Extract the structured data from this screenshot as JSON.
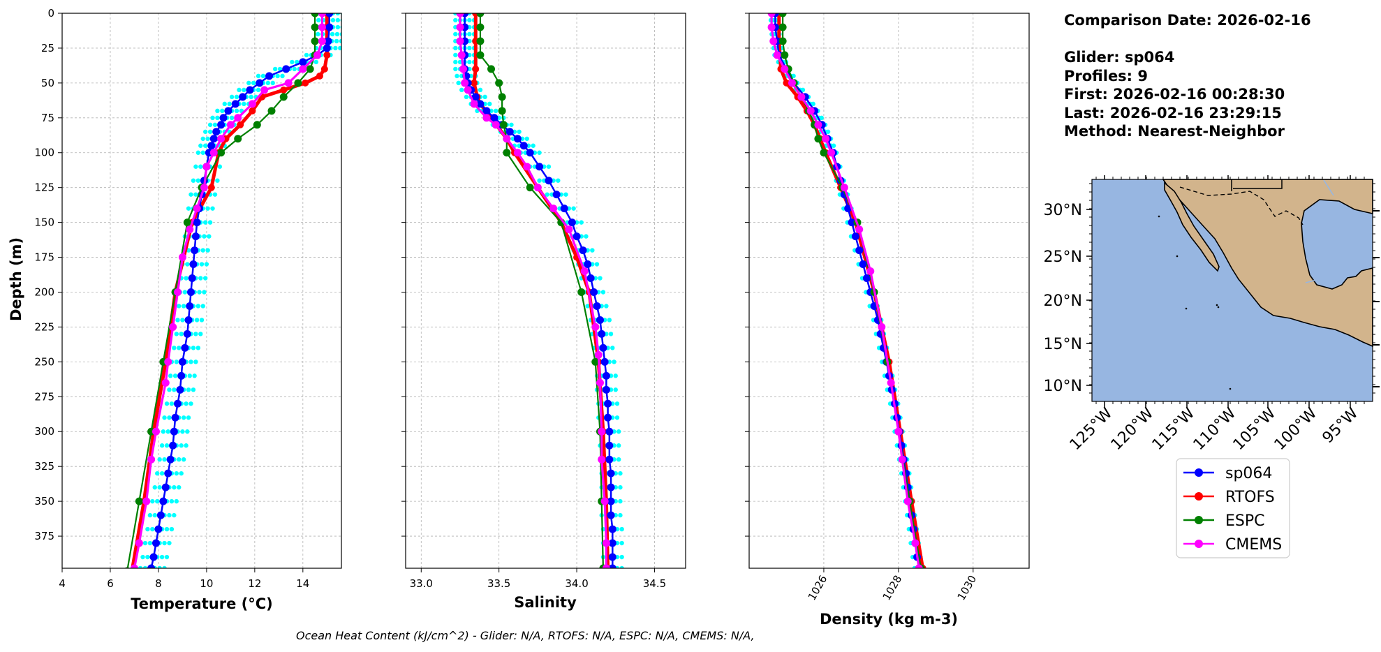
{
  "chart_data": [
    {
      "type": "line",
      "xlabel": "Temperature (°C)",
      "ylabel": "Depth (m)",
      "xlim": [
        4,
        15.6
      ],
      "ylim": [
        398,
        0
      ],
      "xticks": [
        4,
        6,
        8,
        10,
        12,
        14
      ],
      "yticks": [
        0,
        25,
        50,
        75,
        100,
        125,
        150,
        175,
        200,
        225,
        250,
        275,
        300,
        325,
        350,
        375
      ],
      "grid": true,
      "profiles_scatter": {
        "name": "glider profiles",
        "offsets": [
          -0.45,
          -0.25,
          -0.05,
          0.15,
          0.35,
          0.55
        ],
        "depths": [
          0,
          5,
          10,
          15,
          20,
          25,
          30,
          35,
          40,
          45,
          50,
          55,
          60,
          65,
          70,
          75,
          80,
          85,
          90,
          95,
          100,
          110,
          120,
          130,
          140,
          150,
          160,
          170,
          180,
          190,
          200,
          210,
          220,
          230,
          240,
          250,
          260,
          270,
          280,
          290,
          300,
          310,
          320,
          330,
          340,
          350,
          360,
          370,
          380,
          390,
          398
        ]
      },
      "series": [
        {
          "name": "sp064",
          "depth": [
            0,
            10,
            20,
            25,
            30,
            35,
            40,
            45,
            50,
            55,
            60,
            65,
            70,
            75,
            80,
            85,
            90,
            95,
            100,
            110,
            120,
            130,
            140,
            150,
            160,
            170,
            180,
            190,
            200,
            210,
            220,
            230,
            240,
            250,
            260,
            270,
            280,
            290,
            300,
            310,
            320,
            330,
            340,
            350,
            360,
            370,
            380,
            390,
            398
          ],
          "values": [
            15.1,
            15.1,
            15.05,
            15.0,
            14.6,
            14.0,
            13.3,
            12.6,
            12.2,
            11.8,
            11.5,
            11.2,
            10.9,
            10.7,
            10.6,
            10.4,
            10.3,
            10.2,
            10.1,
            10.0,
            9.9,
            9.8,
            9.7,
            9.6,
            9.55,
            9.5,
            9.45,
            9.4,
            9.35,
            9.3,
            9.25,
            9.2,
            9.1,
            9.0,
            8.95,
            8.9,
            8.8,
            8.7,
            8.65,
            8.6,
            8.5,
            8.4,
            8.3,
            8.2,
            8.1,
            8.0,
            7.9,
            7.8,
            7.7
          ]
        },
        {
          "name": "RTOFS",
          "depth": [
            0,
            10,
            20,
            30,
            40,
            45,
            50,
            55,
            60,
            70,
            80,
            90,
            100,
            125,
            150,
            200,
            250,
            300,
            350,
            400
          ],
          "values": [
            15.0,
            15.0,
            15.0,
            15.0,
            14.9,
            14.7,
            14.1,
            13.2,
            12.3,
            11.9,
            11.4,
            10.8,
            10.5,
            10.2,
            9.4,
            8.7,
            8.3,
            7.8,
            7.4,
            6.9
          ]
        },
        {
          "name": "ESPC",
          "depth": [
            0,
            10,
            20,
            30,
            40,
            50,
            60,
            70,
            80,
            90,
            100,
            125,
            150,
            200,
            250,
            300,
            350,
            400
          ],
          "values": [
            14.5,
            14.5,
            14.5,
            14.5,
            14.3,
            13.8,
            13.2,
            12.7,
            12.1,
            11.3,
            10.6,
            9.8,
            9.2,
            8.7,
            8.2,
            7.7,
            7.2,
            6.7
          ]
        },
        {
          "name": "CMEMS",
          "depth": [
            0,
            10,
            20,
            30,
            40,
            50,
            55,
            65,
            75,
            80,
            90,
            100,
            110,
            125,
            140,
            155,
            175,
            200,
            225,
            250,
            265,
            300,
            320,
            350,
            380,
            398
          ],
          "values": [
            14.8,
            14.8,
            14.8,
            14.6,
            14.0,
            13.4,
            12.4,
            11.9,
            11.3,
            11.0,
            10.6,
            10.3,
            10.0,
            9.9,
            9.6,
            9.3,
            9.0,
            8.8,
            8.6,
            8.4,
            8.3,
            7.9,
            7.7,
            7.5,
            7.2,
            7.0
          ]
        }
      ]
    },
    {
      "type": "line",
      "xlabel": "Salinity",
      "xlim": [
        32.9,
        34.7
      ],
      "ylim": [
        398,
        0
      ],
      "xticks": [
        33.0,
        33.5,
        34.0,
        34.5
      ],
      "grid": true,
      "profiles_scatter": {
        "name": "glider profiles",
        "offsets": [
          -0.06,
          -0.03,
          0.0,
          0.03,
          0.06
        ],
        "depths": [
          0,
          5,
          10,
          15,
          20,
          25,
          30,
          35,
          40,
          45,
          50,
          55,
          60,
          65,
          70,
          75,
          80,
          85,
          90,
          95,
          100,
          110,
          120,
          130,
          140,
          150,
          160,
          170,
          180,
          190,
          200,
          210,
          220,
          230,
          240,
          250,
          260,
          270,
          280,
          290,
          300,
          310,
          320,
          330,
          340,
          350,
          360,
          370,
          380,
          390,
          398
        ]
      },
      "series": [
        {
          "name": "sp064",
          "depth": [
            0,
            10,
            20,
            30,
            40,
            45,
            50,
            55,
            60,
            65,
            70,
            75,
            80,
            85,
            90,
            95,
            100,
            110,
            120,
            130,
            140,
            150,
            160,
            170,
            180,
            190,
            200,
            210,
            220,
            230,
            240,
            250,
            260,
            270,
            280,
            290,
            300,
            310,
            320,
            330,
            340,
            350,
            360,
            370,
            380,
            390,
            398
          ],
          "values": [
            33.28,
            33.28,
            33.28,
            33.28,
            33.28,
            33.29,
            33.3,
            33.32,
            33.35,
            33.38,
            33.42,
            33.47,
            33.52,
            33.57,
            33.62,
            33.66,
            33.7,
            33.76,
            33.82,
            33.87,
            33.92,
            33.97,
            34.0,
            34.04,
            34.07,
            34.09,
            34.11,
            34.13,
            34.15,
            34.16,
            34.17,
            34.18,
            34.19,
            34.19,
            34.2,
            34.2,
            34.21,
            34.21,
            34.21,
            34.22,
            34.22,
            34.22,
            34.22,
            34.23,
            34.23,
            34.23,
            34.23
          ]
        },
        {
          "name": "RTOFS",
          "depth": [
            0,
            20,
            40,
            50,
            60,
            65,
            75,
            90,
            100,
            125,
            150,
            175,
            200,
            250,
            300,
            350,
            398
          ],
          "values": [
            33.35,
            33.35,
            33.35,
            33.34,
            33.36,
            33.38,
            33.45,
            33.55,
            33.6,
            33.75,
            33.9,
            34.0,
            34.08,
            34.14,
            34.17,
            34.19,
            34.2
          ]
        },
        {
          "name": "ESPC",
          "depth": [
            0,
            10,
            20,
            30,
            40,
            50,
            60,
            70,
            80,
            90,
            100,
            125,
            150,
            200,
            250,
            300,
            350,
            398
          ],
          "values": [
            33.38,
            33.38,
            33.38,
            33.38,
            33.45,
            33.5,
            33.52,
            33.52,
            33.53,
            33.55,
            33.55,
            33.7,
            33.9,
            34.03,
            34.12,
            34.15,
            34.16,
            34.17
          ]
        },
        {
          "name": "CMEMS",
          "depth": [
            0,
            10,
            20,
            30,
            40,
            50,
            55,
            65,
            75,
            80,
            90,
            100,
            110,
            125,
            140,
            155,
            185,
            225,
            245,
            265,
            300,
            320,
            350,
            380,
            398
          ],
          "values": [
            33.25,
            33.25,
            33.25,
            33.26,
            33.27,
            33.28,
            33.3,
            33.34,
            33.42,
            33.48,
            33.55,
            33.62,
            33.68,
            33.75,
            33.85,
            33.95,
            34.05,
            34.12,
            34.14,
            34.15,
            34.16,
            34.16,
            34.18,
            34.19,
            34.19
          ]
        }
      ]
    },
    {
      "type": "line",
      "xlabel": "Density (kg m-3)",
      "xlim": [
        1024,
        1031.5
      ],
      "ylim": [
        398,
        0
      ],
      "xticks": [
        1026,
        1028,
        1030
      ],
      "grid": true,
      "profiles_scatter": {
        "name": "glider profiles",
        "offsets": [
          -0.12,
          -0.05,
          0.02,
          0.09
        ],
        "depths": [
          0,
          5,
          10,
          15,
          20,
          25,
          30,
          35,
          40,
          45,
          50,
          55,
          60,
          65,
          70,
          75,
          80,
          85,
          90,
          95,
          100,
          110,
          120,
          130,
          140,
          150,
          160,
          170,
          180,
          190,
          200,
          210,
          220,
          230,
          240,
          250,
          260,
          270,
          280,
          290,
          300,
          310,
          320,
          330,
          340,
          350,
          360,
          370,
          380,
          390,
          398
        ]
      },
      "series": [
        {
          "name": "sp064",
          "depth": [
            0,
            10,
            20,
            30,
            40,
            50,
            60,
            70,
            80,
            90,
            100,
            110,
            120,
            130,
            140,
            150,
            160,
            170,
            180,
            190,
            200,
            210,
            220,
            230,
            240,
            250,
            260,
            270,
            280,
            290,
            300,
            310,
            320,
            330,
            340,
            350,
            360,
            370,
            380,
            390,
            398
          ],
          "values": [
            1024.7,
            1024.7,
            1024.75,
            1024.8,
            1025.0,
            1025.2,
            1025.5,
            1025.75,
            1025.95,
            1026.1,
            1026.25,
            1026.35,
            1026.45,
            1026.55,
            1026.65,
            1026.75,
            1026.85,
            1026.95,
            1027.05,
            1027.15,
            1027.25,
            1027.35,
            1027.45,
            1027.52,
            1027.6,
            1027.68,
            1027.75,
            1027.82,
            1027.9,
            1027.96,
            1028.02,
            1028.08,
            1028.14,
            1028.2,
            1028.25,
            1028.3,
            1028.35,
            1028.4,
            1028.45,
            1028.5,
            1028.55
          ]
        },
        {
          "name": "RTOFS",
          "depth": [
            0,
            20,
            40,
            50,
            60,
            70,
            80,
            90,
            100,
            125,
            150,
            200,
            250,
            300,
            350,
            398
          ],
          "values": [
            1024.8,
            1024.8,
            1024.85,
            1025.0,
            1025.3,
            1025.55,
            1025.75,
            1025.9,
            1026.05,
            1026.45,
            1026.85,
            1027.35,
            1027.75,
            1028.05,
            1028.35,
            1028.65
          ]
        },
        {
          "name": "ESPC",
          "depth": [
            0,
            10,
            20,
            30,
            40,
            50,
            60,
            70,
            80,
            90,
            100,
            125,
            150,
            200,
            250,
            300,
            350,
            398
          ],
          "values": [
            1024.9,
            1024.9,
            1024.9,
            1024.95,
            1025.05,
            1025.2,
            1025.4,
            1025.6,
            1025.75,
            1025.85,
            1026.0,
            1026.5,
            1026.9,
            1027.35,
            1027.7,
            1028.0,
            1028.3,
            1028.6
          ]
        },
        {
          "name": "CMEMS",
          "depth": [
            0,
            10,
            20,
            30,
            40,
            50,
            60,
            70,
            80,
            90,
            100,
            125,
            155,
            185,
            225,
            265,
            300,
            320,
            350,
            380,
            398
          ],
          "values": [
            1024.6,
            1024.6,
            1024.65,
            1024.75,
            1024.95,
            1025.15,
            1025.4,
            1025.65,
            1025.85,
            1026.05,
            1026.2,
            1026.55,
            1026.95,
            1027.25,
            1027.55,
            1027.8,
            1028.0,
            1028.1,
            1028.25,
            1028.45,
            1028.55
          ]
        }
      ]
    }
  ],
  "colors": {
    "sp064": "#0000ff",
    "RTOFS": "#ff0000",
    "ESPC": "#008000",
    "CMEMS": "#ff00ff",
    "profiles": "#00ffff",
    "ocean": "#97b6e1",
    "land": "#d2b48c"
  },
  "info": {
    "comparison_date": "Comparison Date: 2026-02-16",
    "glider": "Glider: sp064",
    "profiles": "Profiles: 9",
    "first": "First: 2026-02-16 00:28:30",
    "last": "Last: 2026-02-16 23:29:15",
    "method": "Method: Nearest-Neighbor"
  },
  "map": {
    "lat_ticks": [
      "30°N",
      "25°N",
      "20°N",
      "15°N",
      "10°N"
    ],
    "lon_ticks": [
      "125°W",
      "120°W",
      "115°W",
      "110°W",
      "105°W",
      "100°W",
      "95°W"
    ]
  },
  "legend": {
    "entries": [
      "sp064",
      "RTOFS",
      "ESPC",
      "CMEMS"
    ]
  },
  "footnote": "Ocean Heat Content (kJ/cm^2) - Glider: N/A,  RTOFS: N/A,  ESPC: N/A,  CMEMS: N/A,"
}
